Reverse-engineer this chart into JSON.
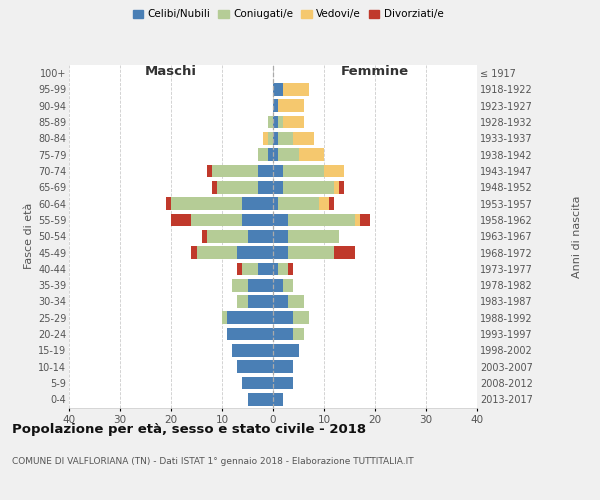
{
  "age_groups": [
    "0-4",
    "5-9",
    "10-14",
    "15-19",
    "20-24",
    "25-29",
    "30-34",
    "35-39",
    "40-44",
    "45-49",
    "50-54",
    "55-59",
    "60-64",
    "65-69",
    "70-74",
    "75-79",
    "80-84",
    "85-89",
    "90-94",
    "95-99",
    "100+"
  ],
  "birth_years": [
    "2013-2017",
    "2008-2012",
    "2003-2007",
    "1998-2002",
    "1993-1997",
    "1988-1992",
    "1983-1987",
    "1978-1982",
    "1973-1977",
    "1968-1972",
    "1963-1967",
    "1958-1962",
    "1953-1957",
    "1948-1952",
    "1943-1947",
    "1938-1942",
    "1933-1937",
    "1928-1932",
    "1923-1927",
    "1918-1922",
    "≤ 1917"
  ],
  "males": {
    "celibe": [
      5,
      6,
      7,
      8,
      9,
      9,
      5,
      5,
      3,
      7,
      5,
      6,
      6,
      3,
      3,
      1,
      0,
      0,
      0,
      0,
      0
    ],
    "coniugato": [
      0,
      0,
      0,
      0,
      0,
      1,
      2,
      3,
      3,
      8,
      8,
      10,
      14,
      8,
      9,
      2,
      1,
      1,
      0,
      0,
      0
    ],
    "vedovo": [
      0,
      0,
      0,
      0,
      0,
      0,
      0,
      0,
      0,
      0,
      0,
      0,
      0,
      0,
      0,
      0,
      1,
      0,
      0,
      0,
      0
    ],
    "divorziato": [
      0,
      0,
      0,
      0,
      0,
      0,
      0,
      0,
      1,
      1,
      1,
      4,
      1,
      1,
      1,
      0,
      0,
      0,
      0,
      0,
      0
    ]
  },
  "females": {
    "nubile": [
      2,
      4,
      4,
      5,
      4,
      4,
      3,
      2,
      1,
      3,
      3,
      3,
      1,
      2,
      2,
      1,
      1,
      1,
      1,
      2,
      0
    ],
    "coniugata": [
      0,
      0,
      0,
      0,
      2,
      3,
      3,
      2,
      2,
      9,
      10,
      13,
      8,
      10,
      8,
      4,
      3,
      1,
      0,
      0,
      0
    ],
    "vedova": [
      0,
      0,
      0,
      0,
      0,
      0,
      0,
      0,
      0,
      0,
      0,
      1,
      2,
      1,
      4,
      5,
      4,
      4,
      5,
      5,
      0
    ],
    "divorziata": [
      0,
      0,
      0,
      0,
      0,
      0,
      0,
      0,
      1,
      4,
      0,
      2,
      1,
      1,
      0,
      0,
      0,
      0,
      0,
      0,
      0
    ]
  },
  "colors": {
    "celibe": "#4a7fb5",
    "coniugato": "#b5cc96",
    "vedovo": "#f5c86e",
    "divorziato": "#c0392b"
  },
  "xlim": 40,
  "title": "Popolazione per età, sesso e stato civile - 2018",
  "subtitle": "COMUNE DI VALFLORIANA (TN) - Dati ISTAT 1° gennaio 2018 - Elaborazione TUTTITALIA.IT",
  "ylabel_left": "Fasce di età",
  "ylabel_right": "Anni di nascita",
  "xlabel_maschi": "Maschi",
  "xlabel_femmine": "Femmine",
  "bg_color": "#f0f0f0",
  "plot_bg_color": "#ffffff"
}
